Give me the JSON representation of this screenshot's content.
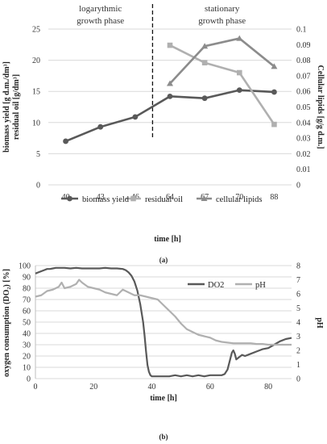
{
  "chart_data": [
    {
      "type": "line",
      "panel_label": "(a)",
      "categories": [
        "40",
        "43",
        "46",
        "64",
        "67",
        "70",
        "88"
      ],
      "xlabel": "time [h]",
      "ylabel_lines": [
        "biomass yield [g d.m./dm³]",
        "residual oil [g/dm³]"
      ],
      "ylabel2": "Cellular lipids [g/g d.m.]",
      "ylim": [
        0,
        25
      ],
      "yticks": [
        0,
        5,
        10,
        15,
        20,
        25
      ],
      "ylim2": [
        0,
        0.1
      ],
      "yticks2": [
        "0",
        "0.01",
        "0.02",
        "0.03",
        "0.04",
        "0.05",
        "0.06",
        "0.07",
        "0.08",
        "0.09",
        "0.1"
      ],
      "annotations": [
        {
          "lines": [
            "logarythmic",
            "growth phase"
          ],
          "center_category": 1
        },
        {
          "lines": [
            "stationary",
            "growth phase"
          ],
          "center_category": 4.5
        }
      ],
      "divider_between": [
        2,
        3
      ],
      "series": [
        {
          "name": "biomass yield",
          "axis": "left",
          "marker": "circle",
          "color": "#595959",
          "values": [
            7.0,
            9.3,
            10.9,
            14.2,
            13.9,
            15.2,
            14.9
          ]
        },
        {
          "name": "residual oil",
          "axis": "left",
          "marker": "square",
          "color": "#b0b0b0",
          "values": [
            null,
            null,
            null,
            22.4,
            19.6,
            18.0,
            9.7
          ]
        },
        {
          "name": "cellular lipids",
          "axis": "right",
          "marker": "triangle",
          "color": "#8c8c8c",
          "values": [
            null,
            null,
            null,
            0.065,
            0.089,
            0.094,
            0.076
          ]
        }
      ],
      "legend_position": "bottom"
    },
    {
      "type": "line",
      "panel_label": "(b)",
      "xlabel": "time [h]",
      "ylabel": "oxygen consumption (DO₂) [%]",
      "ylabel2": "pH",
      "xlim": [
        0,
        88
      ],
      "xticks": [
        0,
        20,
        40,
        60,
        80
      ],
      "ylim": [
        0,
        100
      ],
      "yticks": [
        0,
        10,
        20,
        30,
        40,
        50,
        60,
        70,
        80,
        90,
        100
      ],
      "ylim2": [
        0,
        8
      ],
      "yticks2": [
        0,
        1,
        2,
        3,
        4,
        5,
        6,
        7,
        8
      ],
      "series": [
        {
          "name": "DO2",
          "axis": "left",
          "color": "#595959",
          "x": [
            0,
            1,
            2,
            3,
            4,
            5,
            6,
            7,
            8,
            10,
            12,
            14,
            16,
            18,
            20,
            22,
            24,
            26,
            28,
            30,
            31,
            32,
            33,
            34,
            35,
            36,
            37,
            37.5,
            38,
            38.5,
            39,
            39.5,
            40,
            42,
            44,
            46,
            48,
            50,
            52,
            54,
            56,
            58,
            60,
            62,
            64,
            65,
            66,
            67,
            67.5,
            68,
            68.5,
            69,
            70,
            71,
            72,
            74,
            76,
            78,
            80,
            82,
            84,
            86,
            88
          ],
          "values": [
            93,
            94,
            95,
            96,
            97,
            97,
            97.5,
            98,
            98,
            98,
            97.5,
            98,
            97.5,
            97.5,
            97.5,
            97.5,
            98,
            97.5,
            97.5,
            97,
            96,
            94,
            91,
            86,
            78,
            66,
            50,
            38,
            24,
            12,
            6,
            3,
            2,
            2,
            2,
            2,
            3,
            2,
            3,
            2,
            3,
            2,
            3,
            3,
            3,
            4,
            8,
            18,
            23,
            25,
            22,
            17,
            19,
            21,
            20,
            22,
            24,
            26,
            27,
            30,
            33,
            35,
            36
          ]
        },
        {
          "name": "pH",
          "axis": "right",
          "color": "#b0b0b0",
          "x": [
            0,
            2,
            4,
            6,
            8,
            9,
            10,
            12,
            14,
            15,
            16,
            18,
            20,
            22,
            24,
            26,
            28,
            30,
            32,
            34,
            36,
            38,
            40,
            42,
            44,
            46,
            48,
            50,
            52,
            54,
            56,
            58,
            60,
            62,
            64,
            66,
            68,
            70,
            72,
            74,
            76,
            78,
            80,
            82,
            84,
            86,
            88
          ],
          "values": [
            5.8,
            5.9,
            6.2,
            6.3,
            6.5,
            6.8,
            6.4,
            6.5,
            6.7,
            7.0,
            6.8,
            6.5,
            6.4,
            6.3,
            6.1,
            6.0,
            5.9,
            6.3,
            6.1,
            5.9,
            5.9,
            5.8,
            5.7,
            5.6,
            5.2,
            4.8,
            4.4,
            3.9,
            3.5,
            3.3,
            3.1,
            3.0,
            2.9,
            2.7,
            2.6,
            2.55,
            2.5,
            2.5,
            2.5,
            2.5,
            2.45,
            2.45,
            2.4,
            2.4,
            2.4,
            2.4,
            2.4
          ]
        }
      ],
      "legend_position": "inside right"
    }
  ]
}
